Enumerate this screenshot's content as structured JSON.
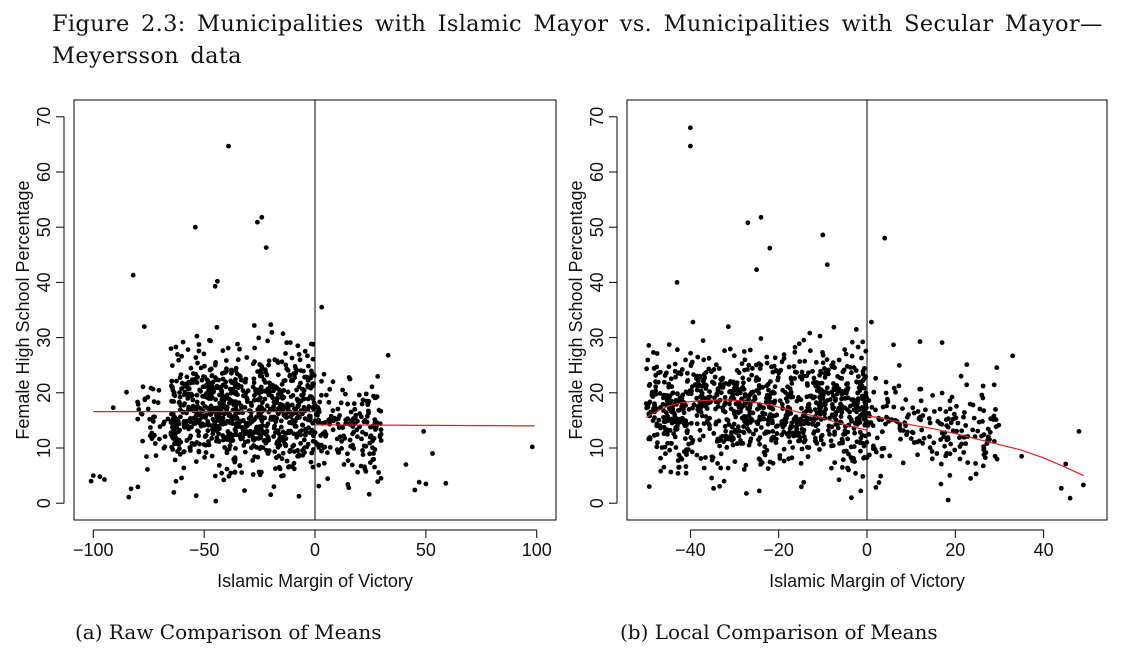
{
  "figure": {
    "title_line1": "Figure 2.3: Municipalities with Islamic Mayor vs. Municipalities with Secular Mayor—",
    "title_line2": "Meyersson data"
  },
  "chart_data": [
    {
      "type": "scatter",
      "title": "",
      "caption": "(a) Raw Comparison of Means",
      "xlabel": "Islamic Margin of Victory",
      "ylabel": "Female High School Percentage",
      "xlim": [
        -100,
        100
      ],
      "ylim": [
        0,
        70
      ],
      "x_ticks": [
        -100,
        -50,
        0,
        50,
        100
      ],
      "y_ticks": [
        0,
        10,
        20,
        30,
        40,
        50,
        60,
        70
      ],
      "cutoff_line_x": 0,
      "point_color": "#000000",
      "fit_color": "#e0201b",
      "highlight_points": [
        {
          "x": -39,
          "y": 64.7
        },
        {
          "x": -24,
          "y": 51.8
        },
        {
          "x": -26,
          "y": 50.9
        },
        {
          "x": -54,
          "y": 50
        },
        {
          "x": -22,
          "y": 46.3
        },
        {
          "x": -82,
          "y": 41.3
        },
        {
          "x": -44,
          "y": 40.2
        },
        {
          "x": -45,
          "y": 39.3
        },
        {
          "x": 3,
          "y": 35.5
        },
        {
          "x": 33,
          "y": 26.8
        },
        {
          "x": 98,
          "y": 10.2
        },
        {
          "x": 49,
          "y": 13
        },
        {
          "x": 53,
          "y": 9
        },
        {
          "x": 59,
          "y": 3.6
        },
        {
          "x": 50,
          "y": 3.5
        },
        {
          "x": 47,
          "y": 3.8
        },
        {
          "x": 45,
          "y": 2.4
        },
        {
          "x": 41,
          "y": 7
        },
        {
          "x": 27,
          "y": 14.5
        },
        {
          "x": 28,
          "y": 19.3
        },
        {
          "x": -100,
          "y": 5
        },
        {
          "x": -101,
          "y": 4
        },
        {
          "x": -97,
          "y": 4.8
        },
        {
          "x": -95,
          "y": 4.3
        },
        {
          "x": -91,
          "y": 17.3
        },
        {
          "x": -85,
          "y": 20.1
        },
        {
          "x": -83,
          "y": 2.6
        },
        {
          "x": -84,
          "y": 1.1
        },
        {
          "x": -77,
          "y": 32
        }
      ],
      "point_clouds": [
        {
          "x": [
            -65,
            0
          ],
          "y_center": 16.5,
          "y_spread": 8.5,
          "n": 900
        },
        {
          "x": [
            0,
            30
          ],
          "y_center": 13.5,
          "y_spread": 7,
          "n": 170
        },
        {
          "x": [
            -80,
            -65
          ],
          "y_center": 14,
          "y_spread": 7,
          "n": 40
        }
      ],
      "series": [
        {
          "name": "",
          "kind": "fit",
          "x": [
            -100,
            0
          ],
          "y": [
            16.6,
            16.6
          ]
        },
        {
          "name": "",
          "kind": "fit",
          "x": [
            0,
            99
          ],
          "y": [
            14.2,
            14.0
          ]
        }
      ]
    },
    {
      "type": "scatter",
      "title": "",
      "caption": "(b) Local Comparison of Means",
      "xlabel": "Islamic Margin of Victory",
      "ylabel": "Female High School Percentage",
      "xlim": [
        -50,
        50
      ],
      "ylim": [
        0,
        70
      ],
      "x_ticks": [
        -40,
        -20,
        0,
        20,
        40
      ],
      "y_ticks": [
        0,
        10,
        20,
        30,
        40,
        50,
        60,
        70
      ],
      "cutoff_line_x": 0,
      "point_color": "#000000",
      "fit_color": "#e0201b",
      "highlight_points": [
        {
          "x": -40,
          "y": 68
        },
        {
          "x": -40,
          "y": 64.7
        },
        {
          "x": -24,
          "y": 51.8
        },
        {
          "x": -27,
          "y": 50.8
        },
        {
          "x": -10,
          "y": 48.6
        },
        {
          "x": 4,
          "y": 48
        },
        {
          "x": -22,
          "y": 46.2
        },
        {
          "x": -9,
          "y": 43.2
        },
        {
          "x": -43,
          "y": 40
        },
        {
          "x": -25,
          "y": 42.3
        },
        {
          "x": 33,
          "y": 26.7
        },
        {
          "x": 48,
          "y": 13
        },
        {
          "x": 49,
          "y": 3.3
        },
        {
          "x": 44,
          "y": 2.7
        },
        {
          "x": 45,
          "y": 7.1
        },
        {
          "x": 46,
          "y": 0.9
        },
        {
          "x": 35,
          "y": 8.5
        },
        {
          "x": 28,
          "y": 15.3
        },
        {
          "x": 26,
          "y": 19.6
        },
        {
          "x": 29,
          "y": 8.5
        },
        {
          "x": 17,
          "y": 29.1
        },
        {
          "x": 12,
          "y": 29.3
        },
        {
          "x": 6,
          "y": 28.7
        },
        {
          "x": 1,
          "y": 32.8
        }
      ],
      "point_clouds": [
        {
          "x": [
            -50,
            0
          ],
          "y_center": 17,
          "y_spread": 8.5,
          "n": 1000
        },
        {
          "x": [
            0,
            30
          ],
          "y_center": 13.5,
          "y_spread": 7,
          "n": 190
        }
      ],
      "series": [
        {
          "name": "",
          "kind": "fit",
          "x": [
            -50,
            -48,
            -45,
            -42,
            -40,
            -37,
            -34,
            -31,
            -28,
            -25,
            -22,
            -19,
            -16,
            -13,
            -10,
            -7,
            -4,
            -1,
            0
          ],
          "y": [
            15.5,
            16.5,
            17.6,
            18.2,
            18.4,
            18.6,
            18.7,
            18.7,
            18.5,
            18.2,
            17.8,
            17.2,
            16.6,
            16.0,
            15.4,
            14.7,
            14.0,
            13.4,
            13.2
          ]
        },
        {
          "name": "",
          "kind": "fit",
          "x": [
            0,
            2,
            5,
            10,
            15,
            20,
            25,
            30,
            35,
            40,
            45,
            49
          ],
          "y": [
            15.8,
            15.6,
            15.1,
            14.2,
            13.5,
            12.6,
            11.6,
            10.6,
            9.6,
            8.2,
            6.5,
            5.0
          ]
        }
      ]
    }
  ]
}
